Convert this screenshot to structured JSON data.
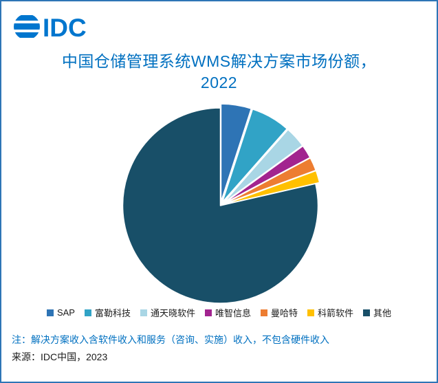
{
  "brand": {
    "logo_text": "IDC",
    "logo_color": "#0076CE"
  },
  "colors": {
    "border": "#2E75B6",
    "background": "#FFFFFF"
  },
  "chart": {
    "title_line1": "中国仓储管理系统WMS解决方案市场份额，",
    "title_line2": "2022",
    "title_color": "#0070C0"
  },
  "chart_data": {
    "type": "pie",
    "title": "中国仓储管理系统WMS解决方案市场份额，2022",
    "values_estimated": true,
    "unit": "%",
    "legend_position": "bottom",
    "series": [
      {
        "label": "SAP",
        "value": 5.0,
        "color": "#2E74B5"
      },
      {
        "label": "富勒科技",
        "value": 6.5,
        "color": "#31A3C6"
      },
      {
        "label": "通天晓软件",
        "value": 3.5,
        "color": "#A9D6E5"
      },
      {
        "label": "唯智信息",
        "value": 2.2,
        "color": "#A2248F"
      },
      {
        "label": "曼哈特",
        "value": 2.2,
        "color": "#ED7D31"
      },
      {
        "label": "科箭软件",
        "value": 2.0,
        "color": "#FFC000"
      },
      {
        "label": "其他",
        "value": 78.6,
        "color": "#184F68"
      }
    ]
  },
  "notes": {
    "note": "注：解决方案收入含软件收入和服务（咨询、实施）收入，不包含硬件收入",
    "note_color": "#0070C0",
    "source": "来源：IDC中国，2023"
  }
}
